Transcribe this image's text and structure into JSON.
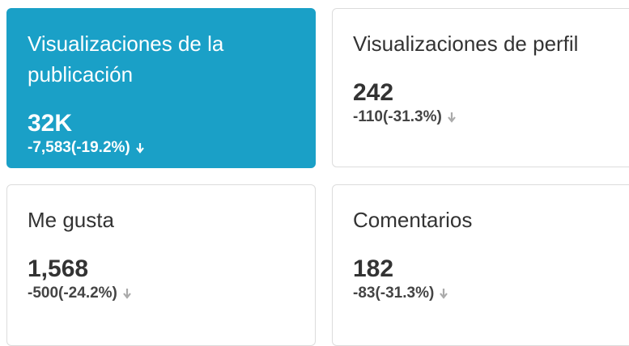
{
  "cards": [
    {
      "title": "Visualizaciones de la publicación",
      "value": "32K",
      "change": "-7,583(-19.2%)"
    },
    {
      "title": "Visualizaciones de perfil",
      "value": "242",
      "change": "-110(-31.3%)"
    },
    {
      "title": "Me gusta",
      "value": "1,568",
      "change": "-500(-24.2%)"
    },
    {
      "title": "Comentarios",
      "value": "182",
      "change": "-83(-31.3%)"
    }
  ]
}
